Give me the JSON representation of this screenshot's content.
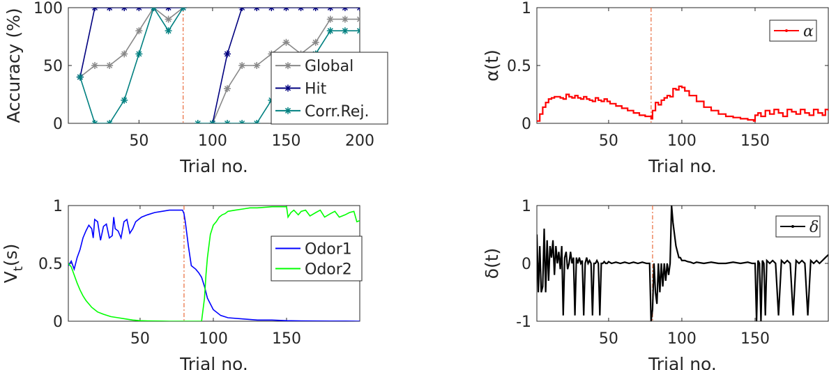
{
  "chart_data": [
    {
      "id": "accuracy",
      "type": "line",
      "xlabel": "Trial no.",
      "ylabel": "Accuracy (%)",
      "xlim": [
        2,
        200
      ],
      "ylim": [
        0,
        100
      ],
      "xticks": [
        50,
        100,
        150,
        200
      ],
      "yticks": [
        0,
        50,
        100
      ],
      "vline": 80,
      "legend": "center-right",
      "series": [
        {
          "name": "Global",
          "color": "#888888",
          "marker": "asterisk",
          "segments": [
            {
              "x": [
                10,
                20,
                30,
                40,
                50,
                60,
                70,
                80
              ],
              "y": [
                40,
                50,
                50,
                60,
                80,
                100,
                90,
                100
              ]
            },
            {
              "x": [
                100,
                110,
                120,
                130,
                140,
                150,
                160,
                170,
                180,
                190,
                200
              ],
              "y": [
                0,
                30,
                50,
                50,
                60,
                70,
                60,
                70,
                90,
                90,
                90
              ]
            }
          ]
        },
        {
          "name": "Hit",
          "color": "#00007f",
          "marker": "asterisk",
          "segments": [
            {
              "x": [
                10,
                20,
                30,
                40,
                50,
                60,
                70,
                80
              ],
              "y": [
                40,
                100,
                100,
                100,
                100,
                100,
                100,
                100
              ]
            },
            {
              "x": [
                100,
                110,
                120,
                130,
                140,
                150,
                160,
                170,
                180,
                190,
                200
              ],
              "y": [
                0,
                60,
                100,
                100,
                100,
                100,
                100,
                100,
                100,
                100,
                100
              ]
            }
          ]
        },
        {
          "name": "Corr.Rej.",
          "color": "#008080",
          "marker": "asterisk",
          "segments": [
            {
              "x": [
                10,
                20,
                30,
                40,
                50,
                60,
                70,
                80
              ],
              "y": [
                40,
                0,
                0,
                20,
                60,
                100,
                80,
                100
              ]
            },
            {
              "x": [
                90,
                100,
                110,
                120,
                130,
                140,
                150,
                160,
                170,
                180,
                190,
                200
              ],
              "y": [
                0,
                0,
                0,
                0,
                0,
                20,
                20,
                20,
                60,
                80,
                80,
                80
              ]
            }
          ]
        }
      ]
    },
    {
      "id": "alpha",
      "type": "line",
      "xlabel": "Trial no.",
      "ylabel": "α(t)",
      "xlim": [
        1,
        200
      ],
      "ylim": [
        0,
        1
      ],
      "xticks": [
        50,
        100,
        150
      ],
      "ytick_labels": [
        "0",
        "0.5",
        "1"
      ],
      "yticks": [
        0,
        0.5,
        1
      ],
      "vline": 79,
      "legend": "top-right",
      "series": [
        {
          "name": "α",
          "color": "#ff0000",
          "marker": "dot",
          "steps": true,
          "x": [
            1,
            3,
            5,
            7,
            9,
            11,
            13,
            15,
            17,
            19,
            21,
            23,
            25,
            27,
            29,
            31,
            33,
            35,
            37,
            39,
            41,
            43,
            45,
            47,
            49,
            51,
            55,
            59,
            63,
            67,
            71,
            75,
            79,
            80,
            82,
            84,
            86,
            88,
            90,
            92,
            94,
            96,
            98,
            100,
            102,
            105,
            110,
            115,
            120,
            125,
            130,
            135,
            140,
            145,
            149,
            150,
            152,
            154,
            157,
            160,
            163,
            166,
            169,
            172,
            175,
            178,
            181,
            184,
            187,
            190,
            193,
            196,
            198,
            200
          ],
          "y": [
            0.02,
            0.08,
            0.14,
            0.18,
            0.21,
            0.22,
            0.23,
            0.23,
            0.22,
            0.21,
            0.25,
            0.23,
            0.22,
            0.24,
            0.22,
            0.21,
            0.23,
            0.21,
            0.2,
            0.19,
            0.22,
            0.2,
            0.19,
            0.21,
            0.19,
            0.17,
            0.15,
            0.13,
            0.11,
            0.09,
            0.07,
            0.06,
            0.04,
            0.11,
            0.18,
            0.16,
            0.2,
            0.22,
            0.24,
            0.23,
            0.3,
            0.29,
            0.32,
            0.31,
            0.28,
            0.24,
            0.19,
            0.14,
            0.11,
            0.08,
            0.06,
            0.05,
            0.04,
            0.03,
            0.02,
            0.07,
            0.09,
            0.06,
            0.11,
            0.08,
            0.12,
            0.09,
            0.06,
            0.12,
            0.1,
            0.08,
            0.12,
            0.09,
            0.07,
            0.12,
            0.09,
            0.07,
            0.12,
            0.11
          ]
        }
      ]
    },
    {
      "id": "values",
      "type": "line",
      "xlabel": "Trial no.",
      "ylabel": "V_t(s)",
      "xlim": [
        1,
        200
      ],
      "ylim": [
        0,
        1
      ],
      "xticks": [
        50,
        100,
        150
      ],
      "ytick_labels": [
        "0",
        "0.5",
        "1"
      ],
      "yticks": [
        0,
        0.5,
        1
      ],
      "vline": 80,
      "legend": "center-right",
      "series": [
        {
          "name": "Odor1",
          "color": "#0000ff",
          "x": [
            1,
            3,
            5,
            7,
            9,
            11,
            13,
            15,
            17,
            18,
            19,
            21,
            23,
            25,
            27,
            29,
            31,
            32,
            33,
            35,
            37,
            39,
            41,
            43,
            45,
            47,
            49,
            51,
            55,
            60,
            65,
            70,
            75,
            79,
            80,
            81,
            83,
            85,
            88,
            90,
            92,
            94,
            96,
            98,
            100,
            105,
            110,
            120,
            130,
            140,
            150,
            160,
            170,
            180,
            190,
            200
          ],
          "y": [
            0.48,
            0.52,
            0.45,
            0.55,
            0.62,
            0.72,
            0.78,
            0.83,
            0.8,
            0.72,
            0.88,
            0.86,
            0.7,
            0.82,
            0.84,
            0.72,
            0.74,
            0.9,
            0.8,
            0.78,
            0.72,
            0.86,
            0.88,
            0.76,
            0.8,
            0.86,
            0.88,
            0.9,
            0.92,
            0.94,
            0.95,
            0.96,
            0.96,
            0.96,
            0.93,
            0.85,
            0.65,
            0.48,
            0.45,
            0.42,
            0.38,
            0.3,
            0.2,
            0.15,
            0.1,
            0.05,
            0.03,
            0.02,
            0.01,
            0.01,
            0.005,
            0.003,
            0.002,
            0.001,
            0.001,
            0.0
          ]
        },
        {
          "name": "Odor2",
          "color": "#00ff00",
          "x": [
            1,
            3,
            5,
            7,
            9,
            11,
            13,
            15,
            17,
            19,
            21,
            25,
            30,
            35,
            40,
            45,
            50,
            55,
            60,
            65,
            70,
            75,
            80,
            85,
            90,
            92,
            93,
            94,
            95,
            96,
            97,
            98,
            100,
            102,
            104,
            106,
            108,
            110,
            115,
            120,
            125,
            130,
            140,
            150,
            151,
            153,
            155,
            158,
            160,
            163,
            166,
            170,
            173,
            176,
            180,
            183,
            186,
            190,
            193,
            196,
            198,
            200
          ],
          "y": [
            0.5,
            0.47,
            0.4,
            0.33,
            0.27,
            0.22,
            0.18,
            0.15,
            0.12,
            0.1,
            0.08,
            0.06,
            0.04,
            0.03,
            0.02,
            0.01,
            0.005,
            0.003,
            0.002,
            0.001,
            0.0,
            0.0,
            0.0,
            0.0,
            0.0,
            0.0,
            0.1,
            0.2,
            0.4,
            0.55,
            0.65,
            0.75,
            0.83,
            0.86,
            0.9,
            0.92,
            0.93,
            0.95,
            0.96,
            0.97,
            0.98,
            0.98,
            0.99,
            0.99,
            0.9,
            0.94,
            0.96,
            0.92,
            0.95,
            0.96,
            0.91,
            0.94,
            0.96,
            0.9,
            0.93,
            0.95,
            0.9,
            0.92,
            0.94,
            0.95,
            0.86,
            0.87
          ]
        }
      ]
    },
    {
      "id": "delta",
      "type": "line",
      "xlabel": "Trial no.",
      "ylabel": "δ(t)",
      "xlim": [
        1,
        200
      ],
      "ylim": [
        -1,
        1
      ],
      "xticks": [
        50,
        100,
        150
      ],
      "ytick_labels": [
        "-1",
        "0",
        "1"
      ],
      "yticks": [
        -1,
        0,
        1
      ],
      "vline": 80,
      "legend": "top-right",
      "series": [
        {
          "name": "δ",
          "color": "#000000",
          "marker": "dot",
          "x": [
            1,
            2,
            3,
            4,
            5,
            6,
            7,
            8,
            9,
            10,
            11,
            12,
            13,
            14,
            15,
            16,
            17,
            18,
            19,
            20,
            21,
            22,
            23,
            24,
            25,
            26,
            27,
            28,
            29,
            30,
            31,
            32,
            33,
            34,
            35,
            36,
            37,
            38,
            39,
            40,
            41,
            42,
            43,
            44,
            45,
            46,
            47,
            48,
            49,
            50,
            52,
            55,
            58,
            61,
            64,
            67,
            70,
            73,
            76,
            78,
            79,
            80,
            81,
            82,
            83,
            84,
            85,
            86,
            87,
            88,
            89,
            90,
            91,
            92,
            93,
            94,
            95,
            96,
            97,
            98,
            99,
            100,
            102,
            104,
            106,
            108,
            110,
            115,
            120,
            125,
            130,
            135,
            140,
            145,
            148,
            149,
            150,
            151,
            152,
            153,
            154,
            155,
            156,
            157,
            158,
            160,
            162,
            164,
            166,
            168,
            170,
            172,
            174,
            176,
            178,
            180,
            182,
            184,
            186,
            188,
            190,
            192,
            194,
            196,
            198,
            200
          ],
          "y": [
            0.5,
            -0.5,
            0.3,
            -0.5,
            -0.4,
            0.6,
            -0.5,
            0.4,
            -0.3,
            0.3,
            0.1,
            0.4,
            -0.2,
            0.3,
            0.0,
            0.2,
            -0.1,
            0.3,
            -0.9,
            0.1,
            0.2,
            -0.1,
            0.0,
            0.2,
            0.0,
            0.1,
            -0.9,
            0.1,
            0.0,
            0.1,
            0.0,
            0.05,
            -0.9,
            0.0,
            0.1,
            0.0,
            0.05,
            0.0,
            -0.9,
            0.0,
            0.0,
            0.05,
            0.0,
            -0.9,
            0.0,
            0.0,
            0.03,
            0.0,
            0.0,
            0.03,
            0.0,
            0.02,
            0.0,
            0.02,
            0.0,
            0.02,
            0.0,
            0.02,
            0.0,
            0.0,
            -1.0,
            -0.8,
            0.0,
            -0.5,
            -0.7,
            0.0,
            -0.5,
            0.0,
            -0.4,
            0.0,
            -0.3,
            0.0,
            -0.2,
            0.0,
            1.0,
            0.7,
            0.5,
            0.3,
            0.2,
            0.1,
            0.1,
            0.05,
            0.05,
            0.03,
            0.02,
            0.0,
            0.02,
            0.0,
            0.02,
            0.0,
            0.0,
            0.02,
            0.0,
            0.02,
            0.0,
            0.0,
            0.0,
            -1.0,
            0.05,
            0.0,
            -1.0,
            0.05,
            0.0,
            -0.9,
            0.05,
            0.0,
            0.05,
            0.0,
            -0.9,
            0.05,
            0.0,
            0.05,
            0.0,
            -0.9,
            0.05,
            0.0,
            0.05,
            0.0,
            -0.9,
            0.05,
            0.0,
            0.05,
            0.0,
            0.05,
            0.1,
            0.15
          ]
        }
      ]
    }
  ]
}
